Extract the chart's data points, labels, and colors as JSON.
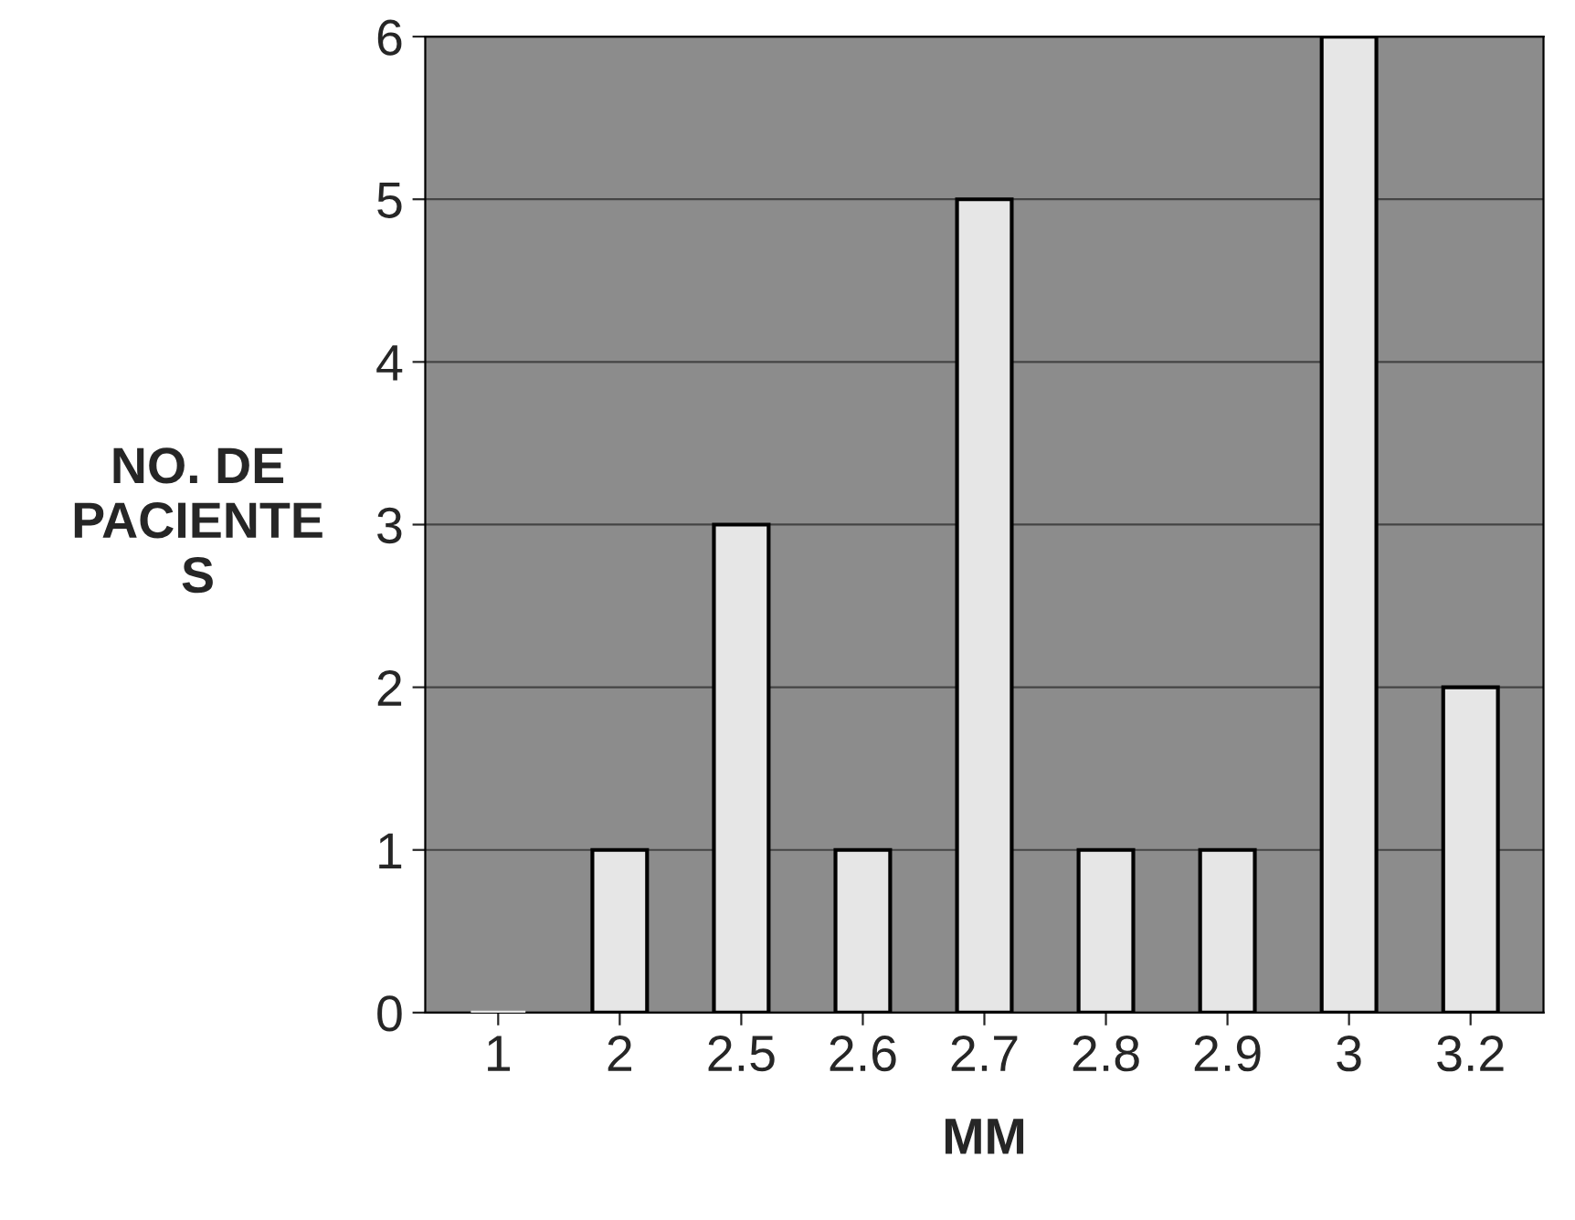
{
  "chart_data": {
    "type": "bar",
    "xlabel": "MM",
    "ylabel": "NO. DE\nPACIENTE\nS",
    "categories": [
      "1",
      "2",
      "2.5",
      "2.6",
      "2.7",
      "2.8",
      "2.9",
      "3",
      "3.2"
    ],
    "values": [
      0,
      1,
      3,
      1,
      5,
      1,
      1,
      6,
      2
    ],
    "color": "#e6e6e6",
    "ylim": [
      0,
      6
    ],
    "yticks": [
      0,
      1,
      2,
      3,
      4,
      5,
      6
    ],
    "grid": "y"
  }
}
